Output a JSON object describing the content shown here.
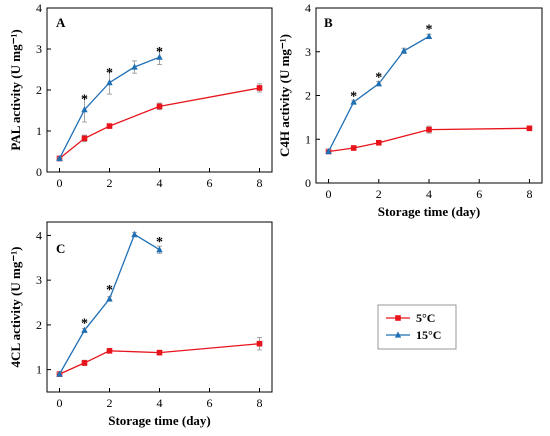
{
  "chart_data": [
    {
      "type": "line",
      "panel": "A",
      "ylabel": "PAL activity (U mg⁻¹)",
      "xlabel": "",
      "xlim": [
        -0.5,
        8.5
      ],
      "ylim": [
        0,
        4
      ],
      "xticks": [
        "0",
        "2",
        "4",
        "6",
        "8"
      ],
      "yticks": [
        "0",
        "1",
        "2",
        "3",
        "4"
      ],
      "series": [
        {
          "name": "5°C",
          "x": [
            0,
            1,
            2,
            4,
            8
          ],
          "y": [
            0.33,
            0.82,
            1.12,
            1.6,
            2.05
          ],
          "err": [
            0.03,
            0.08,
            0.05,
            0.08,
            0.1
          ],
          "color": "#e8141c",
          "marker": "square"
        },
        {
          "name": "15°C",
          "x": [
            0,
            1,
            2,
            3,
            4
          ],
          "y": [
            0.33,
            1.52,
            2.18,
            2.56,
            2.8
          ],
          "err": [
            0.03,
            0.3,
            0.28,
            0.15,
            0.18
          ],
          "color": "#1f6fb5",
          "marker": "triangle"
        }
      ],
      "significance": [
        {
          "x": 1,
          "y": 1.82,
          "label": "*"
        },
        {
          "x": 2,
          "y": 2.46,
          "label": "*"
        },
        {
          "x": 4,
          "y": 2.98,
          "label": "*"
        }
      ]
    },
    {
      "type": "line",
      "panel": "B",
      "ylabel": "C4H activity (U mg⁻¹)",
      "xlabel": "Storage time (day)",
      "xlim": [
        -0.5,
        8.5
      ],
      "ylim": [
        0,
        4
      ],
      "xticks": [
        "0",
        "2",
        "4",
        "6",
        "8"
      ],
      "yticks": [
        "0",
        "1",
        "2",
        "3",
        "4"
      ],
      "series": [
        {
          "name": "5°C",
          "x": [
            0,
            1,
            2,
            4,
            8
          ],
          "y": [
            0.72,
            0.8,
            0.92,
            1.22,
            1.25
          ],
          "err": [
            0.04,
            0.05,
            0.05,
            0.08,
            0.05
          ],
          "color": "#e8141c",
          "marker": "square"
        },
        {
          "name": "15°C",
          "x": [
            0,
            1,
            2,
            3,
            4
          ],
          "y": [
            0.72,
            1.85,
            2.27,
            3.02,
            3.35
          ],
          "err": [
            0.04,
            0.04,
            0.05,
            0.06,
            0.05
          ],
          "color": "#1f6fb5",
          "marker": "triangle"
        }
      ],
      "significance": [
        {
          "x": 1,
          "y": 2.02,
          "label": "*"
        },
        {
          "x": 2,
          "y": 2.46,
          "label": "*"
        },
        {
          "x": 4,
          "y": 3.55,
          "label": "*"
        }
      ]
    },
    {
      "type": "line",
      "panel": "C",
      "ylabel": "4CL activity (U mg⁻¹)",
      "xlabel": "Storage time (day)",
      "xlim": [
        -0.5,
        8.5
      ],
      "ylim": [
        0.5,
        4.3
      ],
      "xticks": [
        "0",
        "2",
        "4",
        "6",
        "8"
      ],
      "yticks": [
        "1",
        "2",
        "3",
        "4"
      ],
      "series": [
        {
          "name": "5°C",
          "x": [
            0,
            1,
            2,
            4,
            8
          ],
          "y": [
            0.9,
            1.15,
            1.42,
            1.38,
            1.58
          ],
          "err": [
            0.03,
            0.06,
            0.04,
            0.05,
            0.14
          ],
          "color": "#e8141c",
          "marker": "square"
        },
        {
          "name": "15°C",
          "x": [
            0,
            1,
            2,
            3,
            4
          ],
          "y": [
            0.9,
            1.88,
            2.58,
            4.02,
            3.68
          ],
          "err": [
            0.03,
            0.04,
            0.05,
            0.05,
            0.08
          ],
          "color": "#1f6fb5",
          "marker": "triangle"
        }
      ],
      "significance": [
        {
          "x": 1,
          "y": 2.08,
          "label": "*"
        },
        {
          "x": 2,
          "y": 2.82,
          "label": "*"
        },
        {
          "x": 4,
          "y": 3.9,
          "label": "*"
        }
      ]
    }
  ],
  "legend": [
    {
      "label": "5°C",
      "color": "#e8141c",
      "marker": "square"
    },
    {
      "label": "15°C",
      "color": "#1f6fb5",
      "marker": "triangle"
    }
  ]
}
